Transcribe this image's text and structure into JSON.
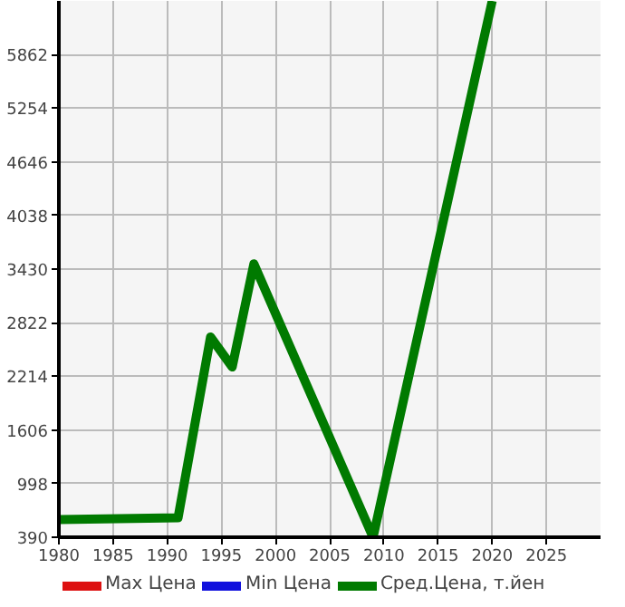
{
  "chart_data": {
    "type": "line",
    "x": [
      1980,
      1991,
      1994,
      1996,
      1998,
      2009,
      2020
    ],
    "series": [
      {
        "name": "Max Цена",
        "color": "#dd1111",
        "values": [
          null,
          null,
          null,
          null,
          null,
          null,
          null
        ]
      },
      {
        "name": "Min Цена",
        "color": "#1111dd",
        "values": [
          null,
          null,
          null,
          null,
          null,
          null,
          null
        ]
      },
      {
        "name": "Сред.Цена, т.йен",
        "color": "#007a00",
        "values": [
          590,
          610,
          2660,
          2320,
          3490,
          390,
          6470
        ]
      }
    ],
    "xlim": [
      1980,
      2030
    ],
    "xticks": [
      1980,
      1985,
      1990,
      1995,
      2000,
      2005,
      2010,
      2015,
      2020,
      2025
    ],
    "ylim": [
      390,
      6470
    ],
    "yticks": [
      390,
      998,
      1606,
      2214,
      2822,
      3430,
      4038,
      4646,
      5254,
      5862
    ],
    "grid": true,
    "legend": "bottom",
    "marker": "none",
    "line_style": "solid"
  }
}
